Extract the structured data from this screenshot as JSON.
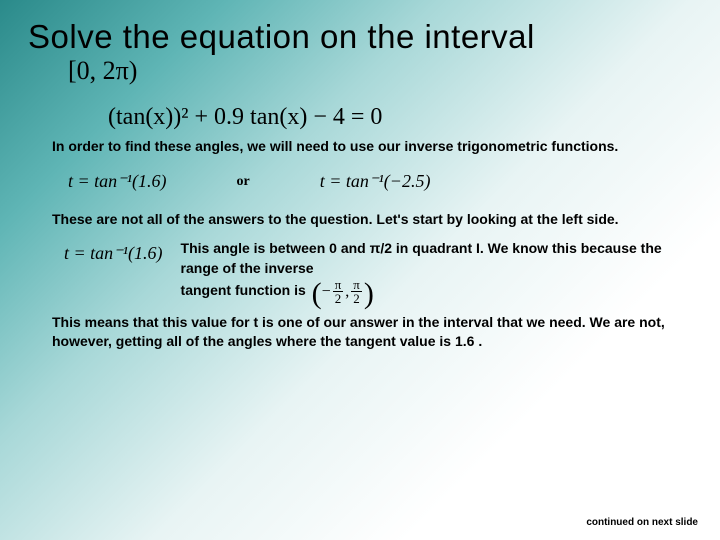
{
  "colors": {
    "gradient_start": "#2a8a8a",
    "gradient_mid": "#a8d8d8",
    "gradient_end": "#ffffff",
    "text": "#000000"
  },
  "font_body": "Comic Sans MS",
  "font_math": "Times New Roman",
  "title": "Solve the equation on the interval",
  "interval": "[0, 2π)",
  "equation": "(tan(x))² + 0.9 tan(x) − 4 = 0",
  "para1": "In order to find these angles, we will need to use our inverse trigonometric functions.",
  "eq_left": "t = tan⁻¹(1.6)",
  "or_label": "or",
  "eq_right": "t = tan⁻¹(−2.5)",
  "para2": "These are not all of the answers to the question.  Let's start by looking at the left side.",
  "row3_eq": "t = tan⁻¹(1.6)",
  "row3_text_a": "This angle is between 0 and π/2 in quadrant I.  We know this because the range of the inverse",
  "row3_text_b": "tangent function is",
  "range_open": "(",
  "range_neg_pi": "π",
  "range_neg_2": "2",
  "range_comma": ",",
  "range_pi": "π",
  "range_2": "2",
  "range_close": ")",
  "para4": "This means that this value for t is one of our answer in the interval that we need.  We are not, however, getting all of the angles where the tangent value is 1.6 .",
  "footer": "continued on next slide"
}
